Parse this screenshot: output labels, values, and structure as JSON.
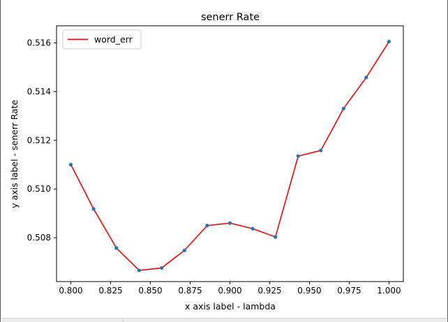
{
  "chart_data": {
    "type": "line",
    "title": "senerr Rate",
    "xlabel": "x axis label - lambda",
    "ylabel": "y axis label - senerr Rate",
    "xlim": [
      0.791,
      1.009
    ],
    "ylim": [
      0.5062,
      0.5167
    ],
    "xticks": [
      0.8,
      0.825,
      0.85,
      0.875,
      0.9,
      0.925,
      0.95,
      0.975,
      1.0
    ],
    "xtick_labels": [
      "0.800",
      "0.825",
      "0.850",
      "0.875",
      "0.900",
      "0.925",
      "0.950",
      "0.975",
      "1.000"
    ],
    "yticks": [
      0.508,
      0.51,
      0.512,
      0.514,
      0.516
    ],
    "ytick_labels": [
      "0.508",
      "0.510",
      "0.512",
      "0.514",
      "0.516"
    ],
    "grid": false,
    "legend": "top-left",
    "series": [
      {
        "name": "word_err",
        "color": "#ff0000",
        "marker_color": "#1f77b4",
        "x": [
          0.8,
          0.8143,
          0.8286,
          0.8429,
          0.8571,
          0.8714,
          0.8857,
          0.9,
          0.9143,
          0.9286,
          0.9429,
          0.9571,
          0.9714,
          0.9857,
          1.0
        ],
        "y": [
          0.511,
          0.50918,
          0.50758,
          0.50666,
          0.50676,
          0.50748,
          0.5085,
          0.5086,
          0.50837,
          0.50803,
          0.51135,
          0.51158,
          0.5133,
          0.51458,
          0.51605
        ]
      }
    ]
  }
}
